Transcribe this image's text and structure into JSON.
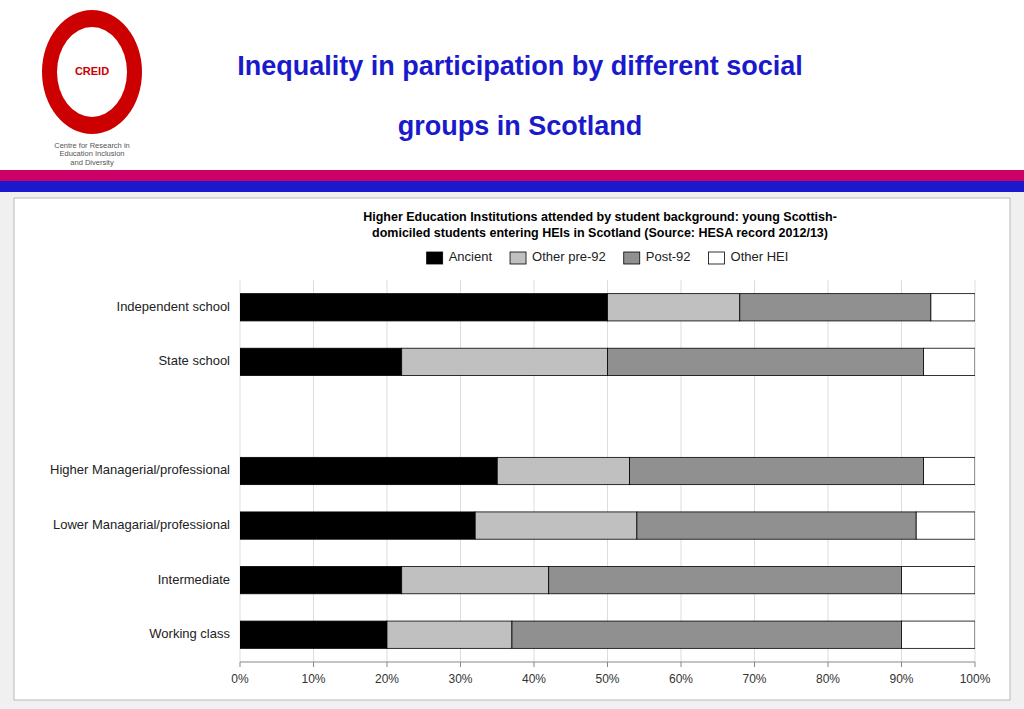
{
  "chart_data": {
    "type": "bar",
    "orientation": "horizontal",
    "stacked": true,
    "title": "Inequality in participation by different social\ngroups in Scotland",
    "subtitle": "Higher Education Institutions attended by student background: young Scottish-\ndomiciled students entering HEIs in Scotland (Source: HESA record 2012/13)",
    "annotations": [
      "CREID",
      "Centre for Research in\nEducation Inclusion\nand Diversity"
    ],
    "categories": [
      "Working class",
      "Intermediate",
      "Lower Managarial/professional",
      "Higher Managerial/professional",
      null,
      "State school",
      "Independent school"
    ],
    "series": [
      {
        "name": "Ancient",
        "color": "#000000",
        "values": [
          20,
          22,
          32,
          35,
          0,
          22,
          50
        ]
      },
      {
        "name": "Other pre-92",
        "color": "#c0c0c0",
        "values": [
          17,
          20,
          22,
          18,
          0,
          28,
          18
        ]
      },
      {
        "name": "Post-92",
        "color": "#909090",
        "values": [
          53,
          48,
          38,
          40,
          0,
          43,
          26
        ]
      },
      {
        "name": "Other HEI",
        "color": "#ffffff",
        "values": [
          10,
          10,
          8,
          7,
          0,
          7,
          6
        ]
      }
    ],
    "xlim": [
      0,
      100
    ],
    "xticks": [
      {
        "value": 0,
        "label": "0%"
      },
      {
        "value": 10,
        "label": "10%"
      },
      {
        "value": 20,
        "label": "20%"
      },
      {
        "value": 30,
        "label": "30%"
      },
      {
        "value": 40,
        "label": "40%"
      },
      {
        "value": 50,
        "label": "50%"
      },
      {
        "value": 60,
        "label": "60%"
      },
      {
        "value": 70,
        "label": "70%"
      },
      {
        "value": 80,
        "label": "80%"
      },
      {
        "value": 90,
        "label": "90%"
      },
      {
        "value": 100,
        "label": "100%"
      }
    ],
    "grid": true,
    "legend": "top"
  }
}
